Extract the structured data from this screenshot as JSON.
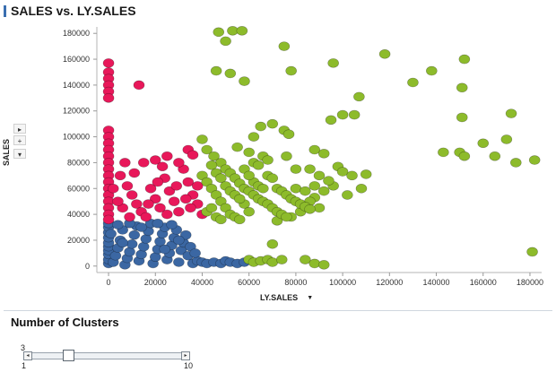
{
  "header": {
    "title": "SALES vs. LY.SALES"
  },
  "side_controls": {
    "play": "▸",
    "plus": "+",
    "menu": "▾"
  },
  "chart_data": {
    "type": "scatter",
    "title": "SALES vs. LY.SALES",
    "xlabel": "LY.SALES",
    "ylabel": "SALES",
    "xlim": [
      -5000,
      185000
    ],
    "ylim": [
      -5000,
      185000
    ],
    "xticks": [
      0,
      20000,
      40000,
      60000,
      80000,
      100000,
      120000,
      140000,
      160000,
      180000
    ],
    "yticks": [
      0,
      20000,
      40000,
      60000,
      80000,
      100000,
      120000,
      140000,
      160000,
      180000
    ],
    "grid": false,
    "clusters": [
      {
        "color": "#3b67a3",
        "points": [
          [
            0,
            2000
          ],
          [
            0,
            5000
          ],
          [
            0,
            9000
          ],
          [
            0,
            12000
          ],
          [
            0,
            15000
          ],
          [
            0,
            18000
          ],
          [
            0,
            22000
          ],
          [
            0,
            26000
          ],
          [
            0,
            30000
          ],
          [
            0,
            33000
          ],
          [
            2000,
            3000
          ],
          [
            3000,
            8000
          ],
          [
            4000,
            14000
          ],
          [
            5000,
            20000
          ],
          [
            6000,
            28000
          ],
          [
            7000,
            1000
          ],
          [
            8000,
            6000
          ],
          [
            9000,
            11000
          ],
          [
            10000,
            17000
          ],
          [
            11000,
            24000
          ],
          [
            12000,
            31000
          ],
          [
            13000,
            4000
          ],
          [
            14000,
            9000
          ],
          [
            15000,
            15000
          ],
          [
            16000,
            21000
          ],
          [
            17000,
            27000
          ],
          [
            18000,
            33000
          ],
          [
            19000,
            2000
          ],
          [
            20000,
            7000
          ],
          [
            21000,
            13000
          ],
          [
            22000,
            19000
          ],
          [
            23000,
            25000
          ],
          [
            24000,
            30000
          ],
          [
            25000,
            5000
          ],
          [
            26000,
            10000
          ],
          [
            27000,
            16000
          ],
          [
            28000,
            22000
          ],
          [
            29000,
            28000
          ],
          [
            30000,
            3000
          ],
          [
            31000,
            12000
          ],
          [
            32000,
            18000
          ],
          [
            33000,
            24000
          ],
          [
            34000,
            8000
          ],
          [
            35000,
            15000
          ],
          [
            36000,
            2000
          ],
          [
            38000,
            4000
          ],
          [
            40000,
            3000
          ],
          [
            42000,
            2000
          ],
          [
            45000,
            3000
          ],
          [
            48000,
            2000
          ],
          [
            50000,
            4000
          ],
          [
            52000,
            3000
          ],
          [
            55000,
            2000
          ],
          [
            58000,
            3000
          ],
          [
            4000,
            32000
          ],
          [
            9000,
            33000
          ],
          [
            14000,
            30000
          ],
          [
            21000,
            33000
          ],
          [
            27000,
            32000
          ],
          [
            1000,
            25000
          ],
          [
            6000,
            18000
          ],
          [
            24000,
            13000
          ],
          [
            30000,
            20000
          ],
          [
            37000,
            10000
          ]
        ]
      },
      {
        "color": "#e8185a",
        "points": [
          [
            0,
            157000
          ],
          [
            0,
            150000
          ],
          [
            0,
            145000
          ],
          [
            0,
            140000
          ],
          [
            0,
            135000
          ],
          [
            0,
            130000
          ],
          [
            0,
            105000
          ],
          [
            0,
            100000
          ],
          [
            0,
            95000
          ],
          [
            0,
            90000
          ],
          [
            0,
            85000
          ],
          [
            0,
            80000
          ],
          [
            0,
            75000
          ],
          [
            0,
            70000
          ],
          [
            0,
            65000
          ],
          [
            0,
            60000
          ],
          [
            0,
            55000
          ],
          [
            0,
            50000
          ],
          [
            0,
            45000
          ],
          [
            0,
            40000
          ],
          [
            0,
            36000
          ],
          [
            13000,
            140000
          ],
          [
            15000,
            80000
          ],
          [
            20000,
            82000
          ],
          [
            25000,
            85000
          ],
          [
            34000,
            90000
          ],
          [
            36000,
            86000
          ],
          [
            5000,
            70000
          ],
          [
            8000,
            62000
          ],
          [
            10000,
            55000
          ],
          [
            12000,
            48000
          ],
          [
            14000,
            42000
          ],
          [
            16000,
            38000
          ],
          [
            18000,
            60000
          ],
          [
            20000,
            52000
          ],
          [
            22000,
            45000
          ],
          [
            24000,
            68000
          ],
          [
            26000,
            58000
          ],
          [
            28000,
            50000
          ],
          [
            30000,
            42000
          ],
          [
            32000,
            75000
          ],
          [
            34000,
            65000
          ],
          [
            36000,
            55000
          ],
          [
            38000,
            48000
          ],
          [
            40000,
            40000
          ],
          [
            6000,
            45000
          ],
          [
            9000,
            38000
          ],
          [
            11000,
            72000
          ],
          [
            17000,
            48000
          ],
          [
            21000,
            65000
          ],
          [
            25000,
            40000
          ],
          [
            29000,
            62000
          ],
          [
            33000,
            52000
          ],
          [
            2000,
            60000
          ],
          [
            4000,
            50000
          ],
          [
            7000,
            80000
          ],
          [
            23000,
            77000
          ],
          [
            30000,
            80000
          ],
          [
            35000,
            45000
          ],
          [
            38000,
            62000
          ]
        ]
      },
      {
        "color": "#8dbb2b",
        "points": [
          [
            47000,
            181000
          ],
          [
            53000,
            182000
          ],
          [
            57000,
            182000
          ],
          [
            50000,
            174000
          ],
          [
            75000,
            170000
          ],
          [
            46000,
            151000
          ],
          [
            52000,
            149000
          ],
          [
            58000,
            143000
          ],
          [
            78000,
            151000
          ],
          [
            96000,
            157000
          ],
          [
            118000,
            164000
          ],
          [
            152000,
            160000
          ],
          [
            138000,
            151000
          ],
          [
            130000,
            142000
          ],
          [
            151000,
            138000
          ],
          [
            107000,
            131000
          ],
          [
            100000,
            117000
          ],
          [
            95000,
            113000
          ],
          [
            105000,
            117000
          ],
          [
            172000,
            118000
          ],
          [
            151000,
            115000
          ],
          [
            65000,
            108000
          ],
          [
            70000,
            110000
          ],
          [
            75000,
            105000
          ],
          [
            77000,
            102000
          ],
          [
            62000,
            100000
          ],
          [
            40000,
            98000
          ],
          [
            88000,
            90000
          ],
          [
            92000,
            87000
          ],
          [
            143000,
            88000
          ],
          [
            150000,
            88000
          ],
          [
            152000,
            85000
          ],
          [
            160000,
            95000
          ],
          [
            165000,
            85000
          ],
          [
            170000,
            98000
          ],
          [
            174000,
            80000
          ],
          [
            182000,
            82000
          ],
          [
            98000,
            77000
          ],
          [
            100000,
            73000
          ],
          [
            104000,
            70000
          ],
          [
            110000,
            71000
          ],
          [
            102000,
            55000
          ],
          [
            108000,
            60000
          ],
          [
            88000,
            53000
          ],
          [
            90000,
            45000
          ],
          [
            86000,
            50000
          ],
          [
            82000,
            42000
          ],
          [
            78000,
            38000
          ],
          [
            72000,
            35000
          ],
          [
            70000,
            17000
          ],
          [
            60000,
            5000
          ],
          [
            62000,
            3000
          ],
          [
            65000,
            4000
          ],
          [
            68000,
            5000
          ],
          [
            70000,
            3000
          ],
          [
            74000,
            5000
          ],
          [
            84000,
            5000
          ],
          [
            88000,
            2000
          ],
          [
            92000,
            1000
          ],
          [
            181000,
            11000
          ],
          [
            42000,
            90000
          ],
          [
            45000,
            85000
          ],
          [
            48000,
            80000
          ],
          [
            50000,
            75000
          ],
          [
            52000,
            72000
          ],
          [
            54000,
            68000
          ],
          [
            56000,
            64000
          ],
          [
            58000,
            60000
          ],
          [
            60000,
            58000
          ],
          [
            62000,
            55000
          ],
          [
            64000,
            52000
          ],
          [
            66000,
            50000
          ],
          [
            68000,
            48000
          ],
          [
            70000,
            45000
          ],
          [
            72000,
            42000
          ],
          [
            74000,
            40000
          ],
          [
            76000,
            38000
          ],
          [
            40000,
            70000
          ],
          [
            42000,
            65000
          ],
          [
            44000,
            60000
          ],
          [
            46000,
            55000
          ],
          [
            48000,
            50000
          ],
          [
            50000,
            45000
          ],
          [
            52000,
            40000
          ],
          [
            54000,
            38000
          ],
          [
            56000,
            36000
          ],
          [
            58000,
            48000
          ],
          [
            60000,
            42000
          ],
          [
            62000,
            65000
          ],
          [
            64000,
            62000
          ],
          [
            66000,
            60000
          ],
          [
            68000,
            70000
          ],
          [
            70000,
            68000
          ],
          [
            72000,
            60000
          ],
          [
            74000,
            58000
          ],
          [
            76000,
            55000
          ],
          [
            78000,
            52000
          ],
          [
            80000,
            50000
          ],
          [
            82000,
            48000
          ],
          [
            84000,
            46000
          ],
          [
            86000,
            44000
          ],
          [
            44000,
            78000
          ],
          [
            46000,
            72000
          ],
          [
            48000,
            68000
          ],
          [
            50000,
            62000
          ],
          [
            52000,
            58000
          ],
          [
            54000,
            55000
          ],
          [
            56000,
            52000
          ],
          [
            58000,
            75000
          ],
          [
            60000,
            70000
          ],
          [
            62000,
            80000
          ],
          [
            64000,
            78000
          ],
          [
            66000,
            85000
          ],
          [
            68000,
            82000
          ],
          [
            55000,
            92000
          ],
          [
            60000,
            88000
          ],
          [
            42000,
            42000
          ],
          [
            44000,
            45000
          ],
          [
            46000,
            38000
          ],
          [
            48000,
            36000
          ],
          [
            80000,
            60000
          ],
          [
            84000,
            58000
          ],
          [
            88000,
            62000
          ],
          [
            92000,
            58000
          ],
          [
            96000,
            62000
          ],
          [
            94000,
            66000
          ],
          [
            90000,
            70000
          ],
          [
            86000,
            75000
          ],
          [
            80000,
            75000
          ],
          [
            76000,
            85000
          ]
        ]
      }
    ]
  },
  "clusters_panel": {
    "title": "Number of Clusters",
    "value": "3",
    "min": "1",
    "max": "10",
    "value_fraction": 0.2222,
    "left_arrow": "◂",
    "right_arrow": "▸"
  }
}
